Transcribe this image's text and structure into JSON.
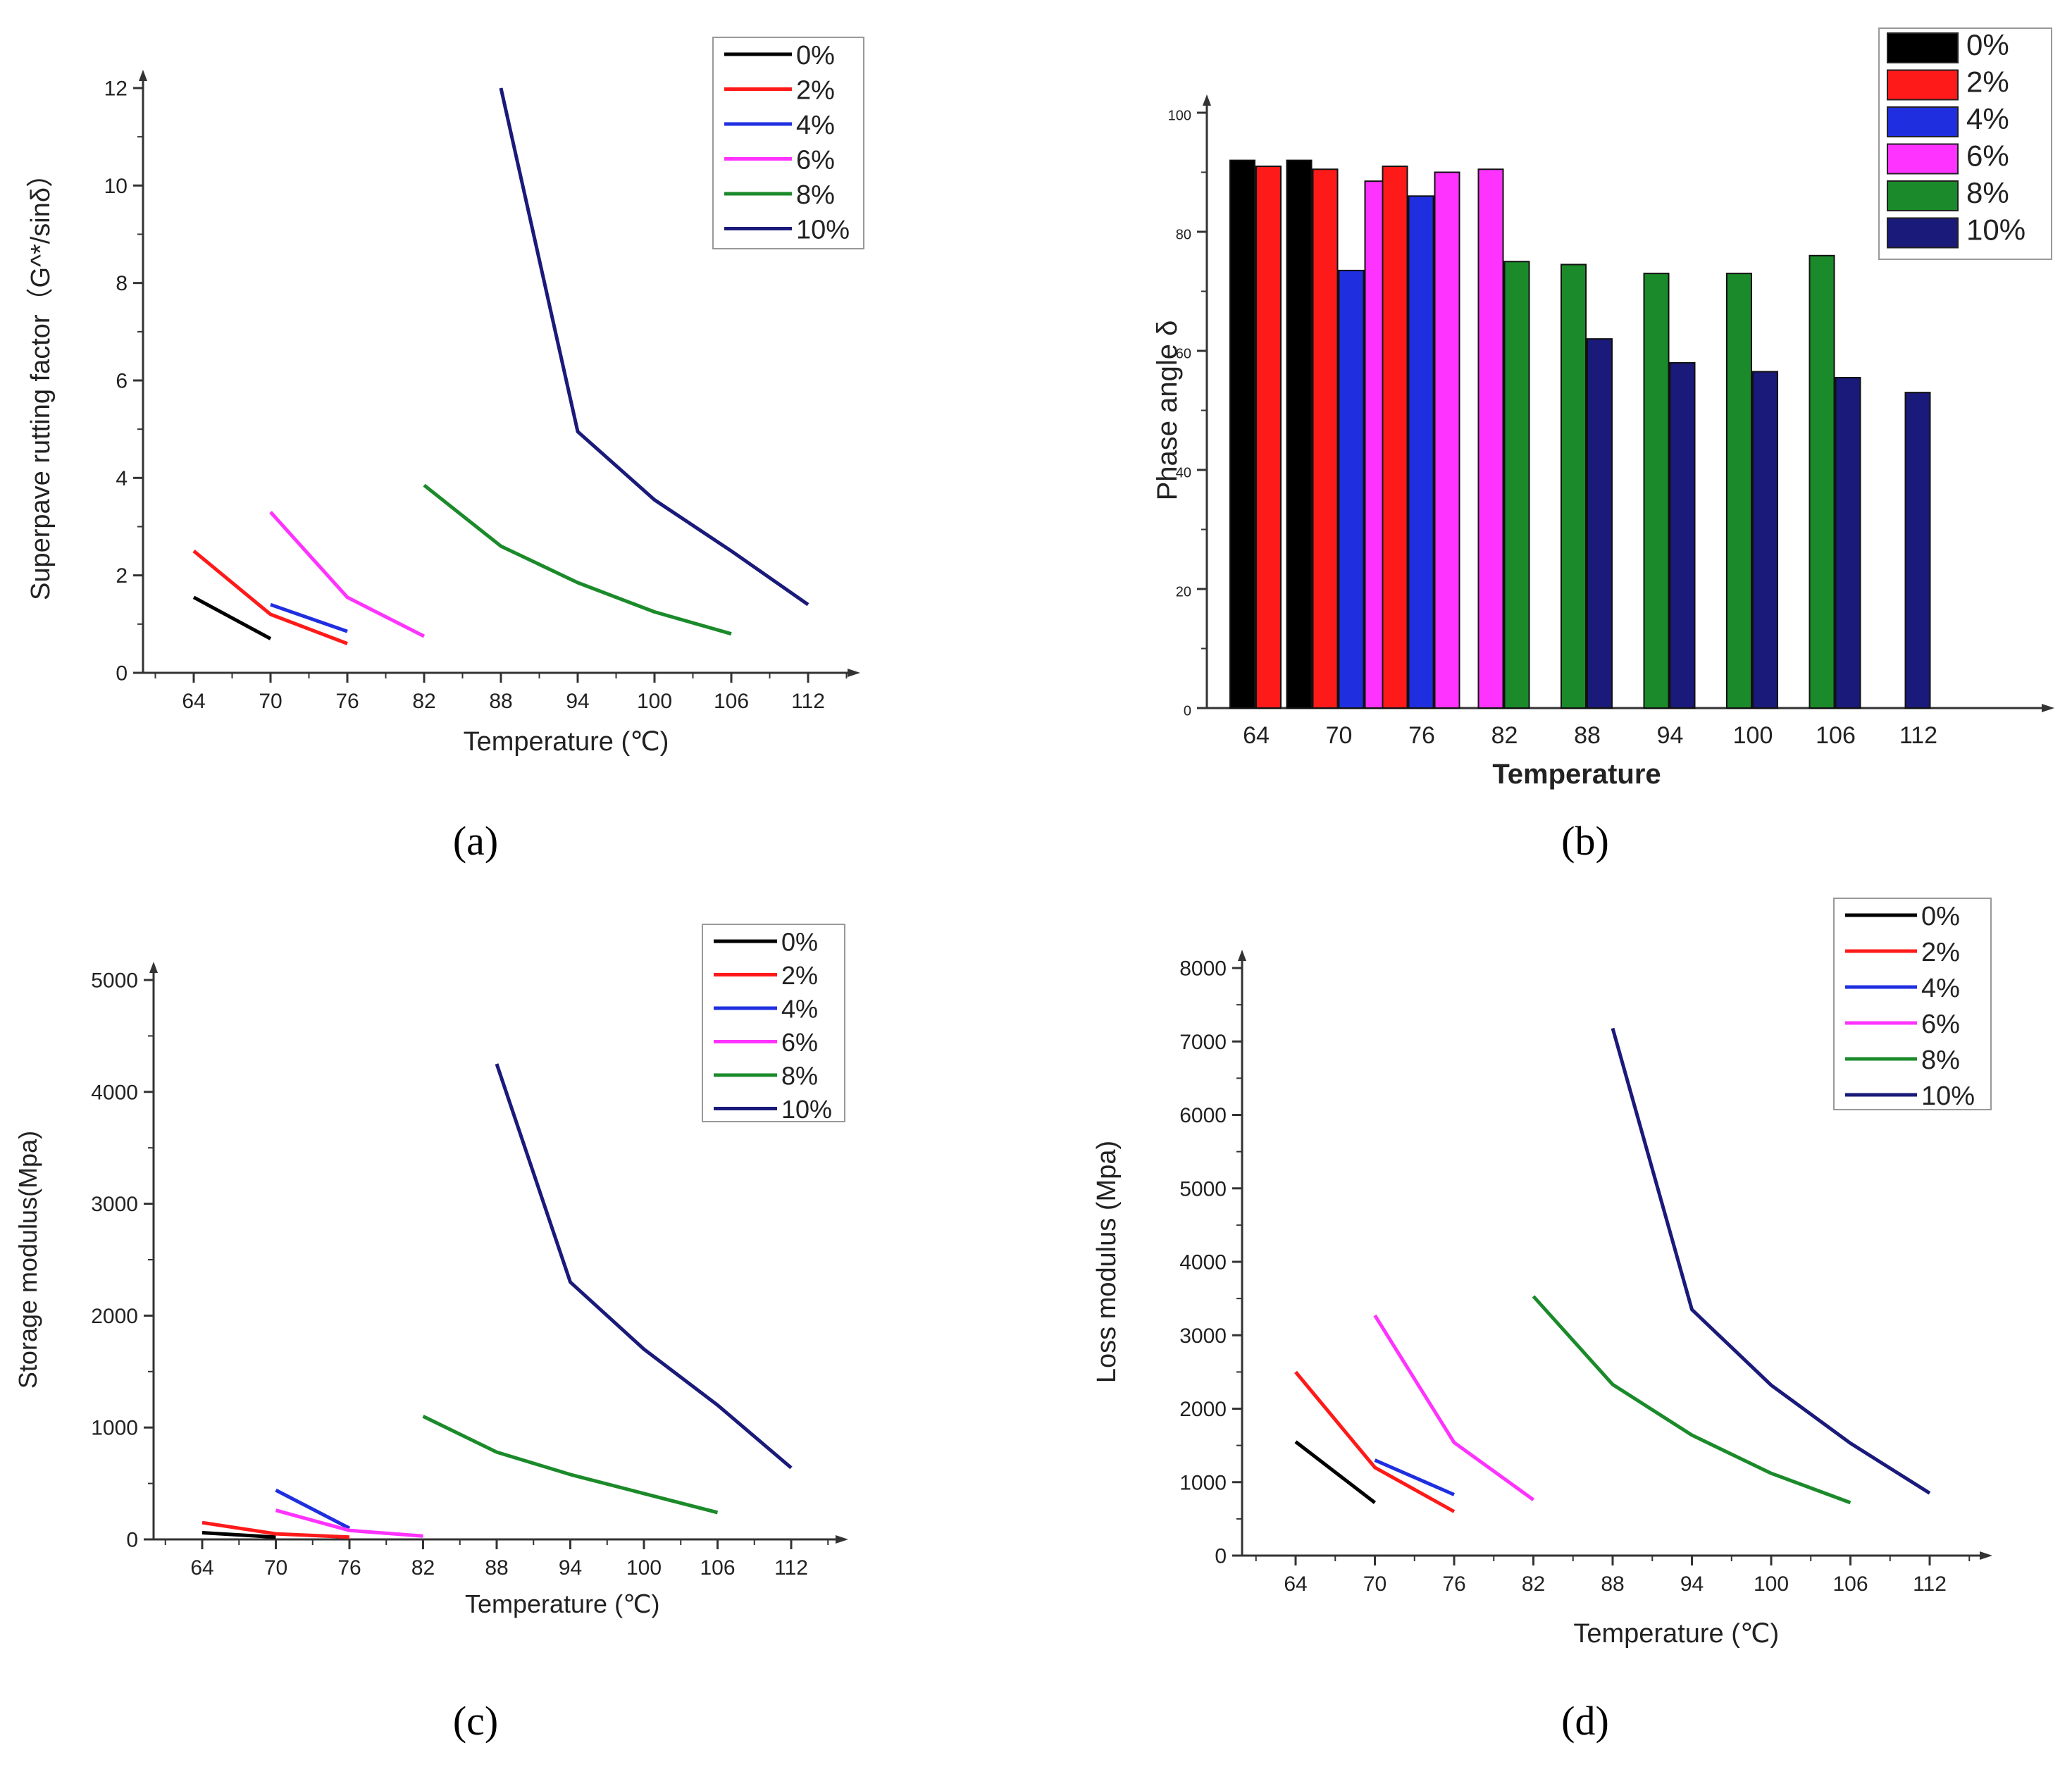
{
  "colors": {
    "0%": "#000000",
    "2%": "#ff1a1a",
    "4%": "#1f2fe0",
    "6%": "#ff33ff",
    "8%": "#1b8a2a",
    "10%": "#1a1a7a"
  },
  "chart_data": [
    {
      "id": "a",
      "panel_label": "(a)",
      "type": "line",
      "title": "",
      "xlabel": "Temperature (℃)",
      "ylabel": "Superpave rutting factor（G^*/sinδ）",
      "categories": [
        "64",
        "70",
        "76",
        "82",
        "88",
        "94",
        "100",
        "106",
        "112"
      ],
      "yticks": [
        "0",
        "2",
        "4",
        "6",
        "8",
        "10",
        "12"
      ],
      "ylim": [
        0,
        13
      ],
      "legend": "top-right",
      "series": [
        {
          "name": "0%",
          "x": [
            64,
            70
          ],
          "y": [
            1.55,
            0.7
          ]
        },
        {
          "name": "2%",
          "x": [
            64,
            70,
            76
          ],
          "y": [
            2.5,
            1.2,
            0.6
          ]
        },
        {
          "name": "4%",
          "x": [
            70,
            76
          ],
          "y": [
            1.4,
            0.85
          ]
        },
        {
          "name": "6%",
          "x": [
            70,
            76,
            82
          ],
          "y": [
            3.3,
            1.55,
            0.75
          ]
        },
        {
          "name": "8%",
          "x": [
            82,
            88,
            94,
            100,
            106
          ],
          "y": [
            3.85,
            2.6,
            1.85,
            1.25,
            0.8
          ]
        },
        {
          "name": "10%",
          "x": [
            88,
            94,
            100,
            106,
            112
          ],
          "y": [
            12.0,
            4.95,
            3.55,
            2.5,
            1.4
          ]
        }
      ]
    },
    {
      "id": "b",
      "panel_label": "(b)",
      "type": "bar",
      "title": "",
      "xlabel": "Temperature",
      "ylabel": "Phase angle δ",
      "categories": [
        "64",
        "70",
        "76",
        "82",
        "88",
        "94",
        "100",
        "106",
        "112"
      ],
      "yticks": [
        "0",
        "20",
        "40",
        "60",
        "80",
        "100"
      ],
      "ylim": [
        0,
        100
      ],
      "legend": "top-right",
      "series": [
        {
          "name": "0%",
          "values": [
            92,
            92,
            null,
            null,
            null,
            null,
            null,
            null,
            null
          ]
        },
        {
          "name": "2%",
          "values": [
            91,
            90.5,
            91,
            null,
            null,
            null,
            null,
            null,
            null
          ]
        },
        {
          "name": "4%",
          "values": [
            null,
            73.5,
            86,
            null,
            null,
            null,
            null,
            null,
            null
          ]
        },
        {
          "name": "6%",
          "values": [
            null,
            88.5,
            90,
            90.5,
            null,
            null,
            null,
            null,
            null
          ]
        },
        {
          "name": "8%",
          "values": [
            null,
            null,
            null,
            75,
            74.5,
            73,
            73,
            76,
            null
          ]
        },
        {
          "name": "10%",
          "values": [
            null,
            null,
            null,
            null,
            62,
            58,
            56.5,
            55.5,
            53
          ]
        }
      ]
    },
    {
      "id": "c",
      "panel_label": "(c)",
      "type": "line",
      "title": "",
      "xlabel": "Temperature (℃)",
      "ylabel": "Storage modulus(Mpa)",
      "categories": [
        "64",
        "70",
        "76",
        "82",
        "88",
        "94",
        "100",
        "106",
        "112"
      ],
      "yticks": [
        "0",
        "1000",
        "2000",
        "3000",
        "4000",
        "5000"
      ],
      "ylim": [
        0,
        5000
      ],
      "legend": "top-right",
      "series": [
        {
          "name": "0%",
          "x": [
            64,
            70
          ],
          "y": [
            60,
            20
          ]
        },
        {
          "name": "2%",
          "x": [
            64,
            70,
            76
          ],
          "y": [
            150,
            50,
            20
          ]
        },
        {
          "name": "4%",
          "x": [
            70,
            76
          ],
          "y": [
            440,
            100
          ]
        },
        {
          "name": "6%",
          "x": [
            70,
            76,
            82
          ],
          "y": [
            260,
            80,
            30
          ]
        },
        {
          "name": "8%",
          "x": [
            82,
            88,
            94,
            100,
            106
          ],
          "y": [
            1100,
            780,
            580,
            410,
            240
          ]
        },
        {
          "name": "10%",
          "x": [
            88,
            94,
            100,
            106,
            112
          ],
          "y": [
            4250,
            2300,
            1700,
            1200,
            640
          ]
        }
      ]
    },
    {
      "id": "d",
      "panel_label": "(d)",
      "type": "line",
      "title": "",
      "xlabel": "Temperature (℃)",
      "ylabel": "Loss modulus (Mpa)",
      "categories": [
        "64",
        "70",
        "76",
        "82",
        "88",
        "94",
        "100",
        "106",
        "112"
      ],
      "yticks": [
        "0",
        "1000",
        "2000",
        "3000",
        "4000",
        "5000",
        "6000",
        "7000",
        "8000"
      ],
      "ylim": [
        0,
        8000
      ],
      "legend": "top-right",
      "series": [
        {
          "name": "0%",
          "x": [
            64,
            70
          ],
          "y": [
            1550,
            720
          ]
        },
        {
          "name": "2%",
          "x": [
            64,
            70,
            76
          ],
          "y": [
            2500,
            1200,
            600
          ]
        },
        {
          "name": "4%",
          "x": [
            70,
            76
          ],
          "y": [
            1300,
            830
          ]
        },
        {
          "name": "6%",
          "x": [
            70,
            76,
            82
          ],
          "y": [
            3270,
            1540,
            760
          ]
        },
        {
          "name": "8%",
          "x": [
            82,
            88,
            94,
            100,
            106
          ],
          "y": [
            3530,
            2330,
            1640,
            1120,
            720
          ]
        },
        {
          "name": "10%",
          "x": [
            88,
            94,
            100,
            106,
            112
          ],
          "y": [
            7180,
            3350,
            2320,
            1530,
            850
          ]
        }
      ]
    }
  ]
}
